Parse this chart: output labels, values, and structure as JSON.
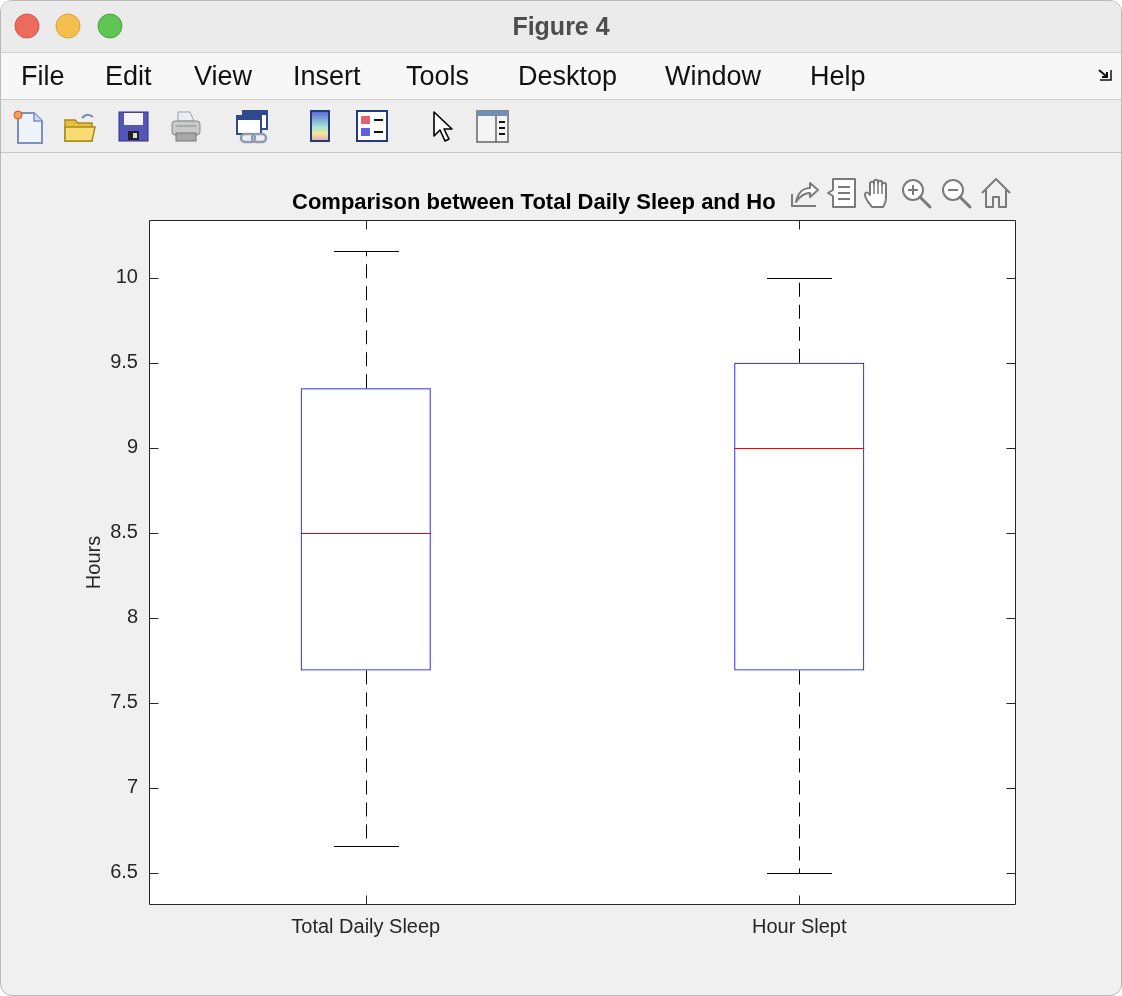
{
  "chart_data": {
    "type": "box",
    "title": "Comparison between Total Daily Sleep and Ho",
    "ylabel": "Hours",
    "categories": [
      "Total Daily Sleep",
      "Hour Slept"
    ],
    "boxes": [
      {
        "low": 6.66,
        "q1": 7.69,
        "median": 8.5,
        "q3": 9.35,
        "high": 10.16
      },
      {
        "low": 6.5,
        "q1": 7.69,
        "median": 9,
        "q3": 9.5,
        "high": 10
      }
    ],
    "color": "#0000ff",
    "line_style": "dashed",
    "ylim": [
      6.31,
      10.34
    ],
    "yticks": [
      6.5,
      7,
      7.5,
      8,
      8.5,
      9,
      9.5,
      10
    ],
    "annotations": [
      "Figure 4",
      "File",
      "Edit",
      "View",
      "Insert",
      "Tools",
      "Desktop",
      "Window",
      "Help"
    ]
  }
}
